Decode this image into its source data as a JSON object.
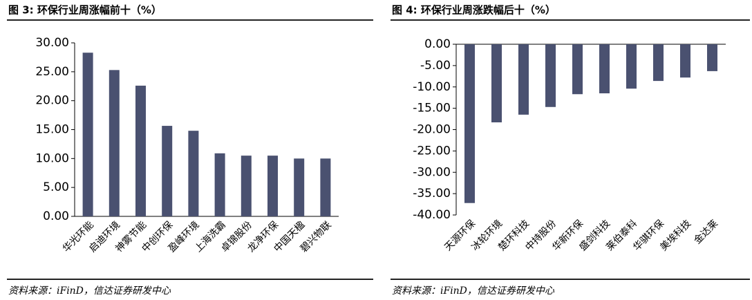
{
  "chart_data": [
    {
      "type": "bar",
      "title": "图 3:  环保行业周涨幅前十（%）",
      "source": "资料来源：iFinD，信达证券研发中心",
      "categories": [
        "华光环能",
        "启迪环境",
        "神雾节能",
        "中创环保",
        "盈峰环境",
        "上海洗霸",
        "卓锦股份",
        "龙净环保",
        "中国天楹",
        "碧兴物联"
      ],
      "values": [
        28.3,
        25.3,
        22.6,
        15.65,
        14.8,
        10.9,
        10.5,
        10.5,
        10.0,
        10.0
      ],
      "color": "#4a5170",
      "ylim": [
        0,
        30
      ],
      "yticks": [
        {
          "value": 0,
          "label": "0.00"
        },
        {
          "value": 5,
          "label": "5.00"
        },
        {
          "value": 10,
          "label": "10.00"
        },
        {
          "value": 15,
          "label": "15.00"
        },
        {
          "value": 20,
          "label": "20.00"
        },
        {
          "value": 25,
          "label": "25.00"
        },
        {
          "value": 30,
          "label": "30.00"
        }
      ]
    },
    {
      "type": "bar",
      "title": "图 4:  环保行业周涨跌幅后十（%）",
      "source": "资料来源：iFinD，信达证券研发中心",
      "categories": [
        "天源环保",
        "冰轮环境",
        "楚环科技",
        "中持股份",
        "华新环保",
        "盛剑科技",
        "莱伯泰科",
        "华骐环保",
        "美埃科技",
        "金达莱"
      ],
      "values": [
        -37.2,
        -18.3,
        -16.5,
        -14.7,
        -11.7,
        -11.5,
        -10.4,
        -8.6,
        -7.8,
        -6.3
      ],
      "color": "#4a5170",
      "ylim": [
        -40,
        0
      ],
      "yticks": [
        {
          "value": 0,
          "label": "0.00"
        },
        {
          "value": -5,
          "label": "-5.00"
        },
        {
          "value": -10,
          "label": "-10.00"
        },
        {
          "value": -15,
          "label": "-15.00"
        },
        {
          "value": -20,
          "label": "-20.00"
        },
        {
          "value": -25,
          "label": "-25.00"
        },
        {
          "value": -30,
          "label": "-30.00"
        },
        {
          "value": -35,
          "label": "-35.00"
        },
        {
          "value": -40,
          "label": "-40.00"
        }
      ]
    }
  ]
}
